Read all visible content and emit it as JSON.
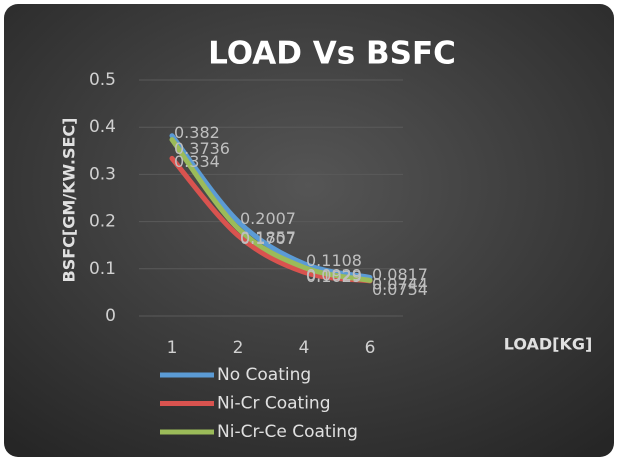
{
  "chart_data": {
    "type": "line",
    "title": "LOAD Vs BSFC",
    "x_label": "LOAD[KG]",
    "y_label": "BSFC[GM/KW.SEC]",
    "categories": [
      "1",
      "2",
      "4",
      "6"
    ],
    "series": [
      {
        "name": "No Coating",
        "color": "#5b9bd5",
        "values": [
          0.382,
          0.2007,
          0.1108,
          0.0817
        ]
      },
      {
        "name": "Ni-Cr Coating",
        "color": "#d9534f",
        "values": [
          0.334,
          0.1707,
          0.0929,
          0.0744
        ]
      },
      {
        "name": "Ni-Cr-Ce Coating",
        "color": "#9bbb59",
        "values": [
          0.3736,
          0.1857,
          0.1029,
          0.0754
        ]
      }
    ],
    "ylim": [
      0,
      0.5
    ],
    "yticks": [
      0,
      0.1,
      0.2,
      0.3,
      0.4,
      0.5
    ],
    "grid": true,
    "legend": "bottom"
  }
}
